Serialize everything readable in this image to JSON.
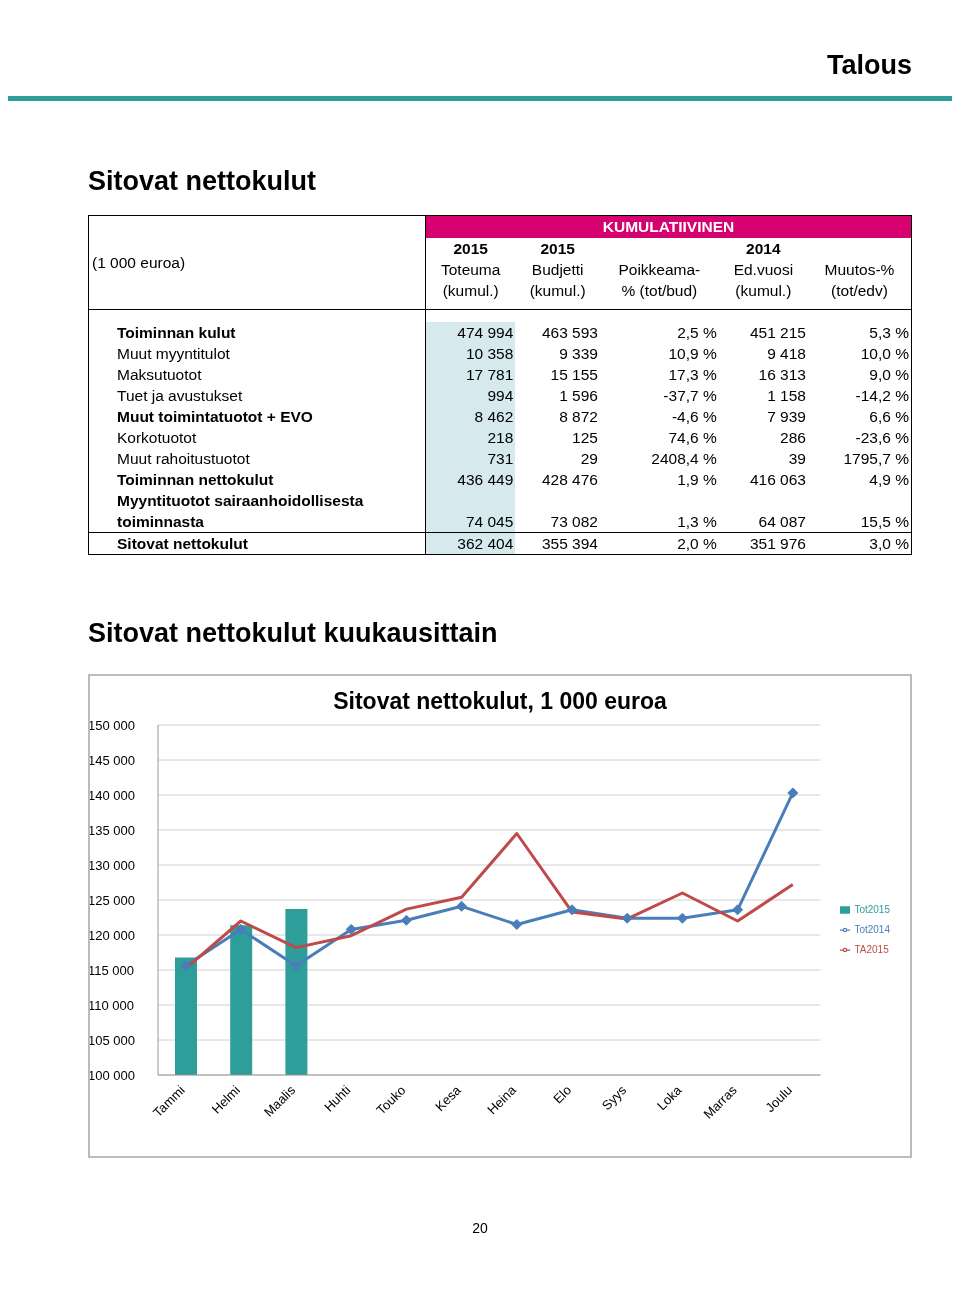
{
  "chart_data": [
    {
      "type": "other",
      "title": "Sitovat nettokulut",
      "annotations": [
        "Talous",
        "KUMULATIIVINEN"
      ],
      "categories": [
        "(1 000 euroa)",
        "2015\nToteuma\n(kumul.)",
        "2015\nBudjetti\n(kumul.)",
        "Poikkeama-\n% (tot/bud)",
        "2014\nEd.vuosi\n(kumul.)",
        "Muutos-%\n(tot/edv)"
      ],
      "y_categories": [
        "Toiminnan kulut",
        "Muut myyntitulot",
        "Maksutuotot",
        "Tuet ja avustukset",
        "Muut toimintatuotot + EVO",
        "Korkotuotot",
        "Muut rahoitustuotot",
        "Toiminnan nettokulut",
        "Myyntituotot sairaanhoidollisesta\ntoiminnasta",
        "Sitovat nettokulut"
      ],
      "cell_labels": [
        [
          "474 994",
          "463 593",
          "2,5 %",
          "451 215",
          "5,3 %"
        ],
        [
          "10 358",
          "9 339",
          "10,9 %",
          "9 418",
          "10,0 %"
        ],
        [
          "17 781",
          "15 155",
          "17,3 %",
          "16 313",
          "9,0 %"
        ],
        [
          "994",
          "1 596",
          "-37,7 %",
          "1 158",
          "-14,2 %"
        ],
        [
          "8 462",
          "8 872",
          "-4,6 %",
          "7 939",
          "6,6 %"
        ],
        [
          "218",
          "125",
          "74,6 %",
          "286",
          "-23,6 %"
        ],
        [
          "731",
          "29",
          "2408,4 %",
          "39",
          "1795,7 %"
        ],
        [
          "436 449",
          "428 476",
          "1,9 %",
          "416 063",
          "4,9 %"
        ],
        [
          "74 045",
          "73 082",
          "1,3 %",
          "64 087",
          "15,5 %"
        ],
        [
          "362 404",
          "355 394",
          "2,0 %",
          "351 976",
          "3,0 %"
        ]
      ]
    },
    {
      "type": "bar",
      "title": "Sitovat nettokulut, 1 000 euroa",
      "annotations": [
        "Sitovat nettokulut kuukausittain",
        "20"
      ],
      "categories": [
        "Tammi",
        "Helmi",
        "Maalis",
        "Huhti",
        "Touko",
        "Kesa",
        "Heina",
        "Elo",
        "Syys",
        "Loka",
        "Marras",
        "Joulu"
      ],
      "ylim": [
        100000,
        150000
      ],
      "yticks": [
        {
          "value": 100000,
          "label": "100 000"
        },
        {
          "value": 105000,
          "label": "105 000"
        },
        {
          "value": 110000,
          "label": "110 000"
        },
        {
          "value": 115000,
          "label": "115 000"
        },
        {
          "value": 120000,
          "label": "120 000"
        },
        {
          "value": 125000,
          "label": "125 000"
        },
        {
          "value": 130000,
          "label": "130 000"
        },
        {
          "value": 135000,
          "label": "135 000"
        },
        {
          "value": 140000,
          "label": "140 000"
        },
        {
          "value": 145000,
          "label": "145 000"
        },
        {
          "value": 150000,
          "label": "150 000"
        }
      ],
      "grid": "y",
      "legend": "right",
      "series": [
        {
          "name": "Tot2015",
          "type": "bar",
          "color": "#2e9e9b",
          "values": [
            116800,
            121400,
            123700,
            null,
            null,
            null,
            null,
            null,
            null,
            null,
            null,
            null
          ]
        },
        {
          "name": "Tot2014",
          "type": "line",
          "color": "#4a7ebb",
          "marker": "diamond",
          "values": [
            115600,
            120800,
            115600,
            120800,
            122100,
            124100,
            121500,
            123600,
            122400,
            122400,
            123600,
            140300
          ]
        },
        {
          "name": "TA2015",
          "type": "line",
          "color": "#be4b48",
          "values": [
            115200,
            122000,
            118200,
            119900,
            123700,
            125400,
            134500,
            123300,
            122300,
            126000,
            122000,
            127200
          ]
        }
      ]
    }
  ]
}
